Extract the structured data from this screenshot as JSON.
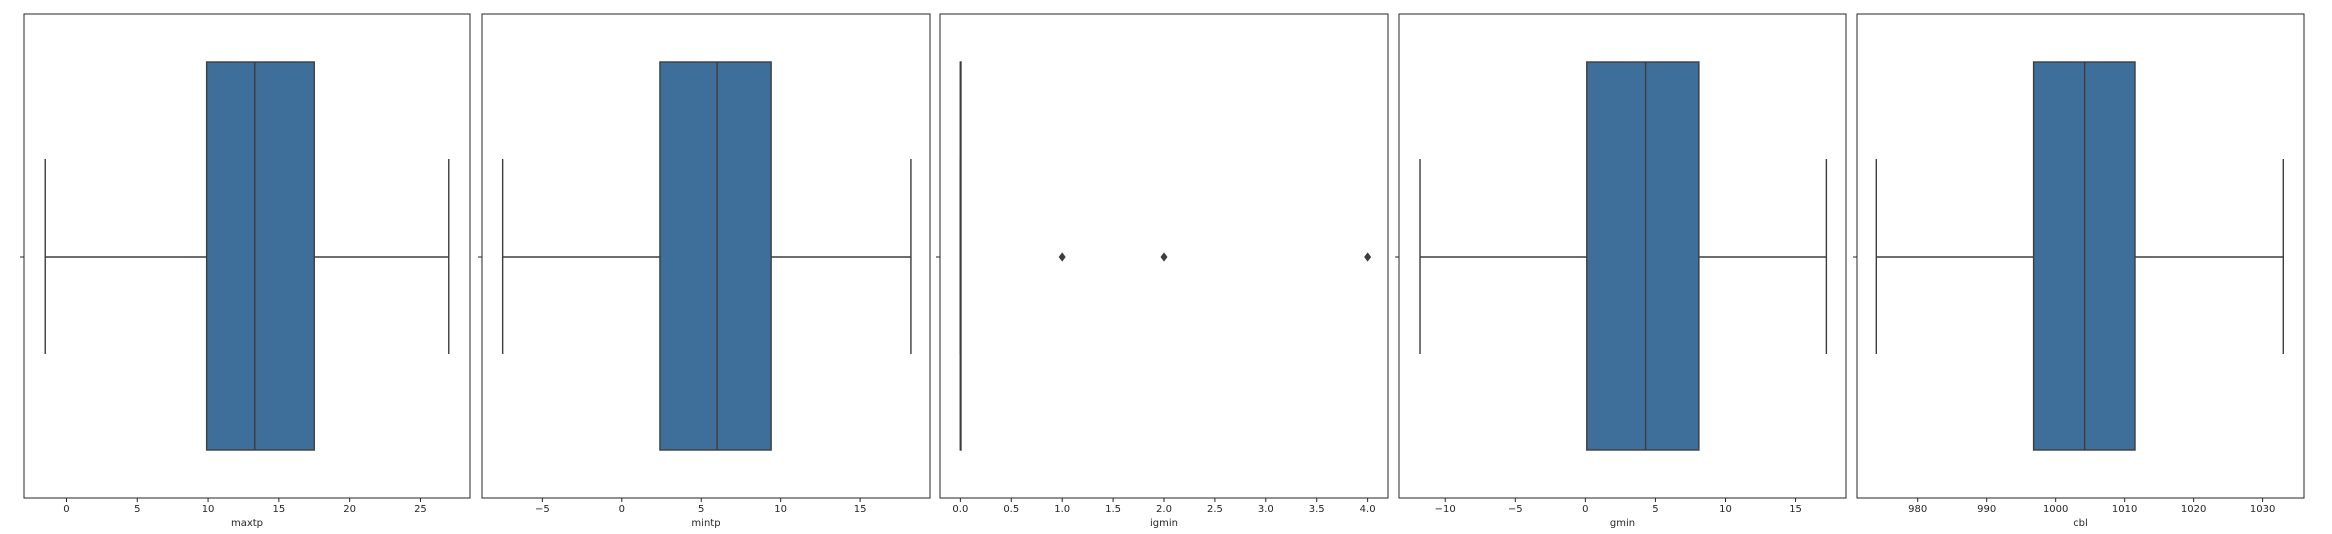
{
  "chart_data": [
    {
      "type": "box",
      "xlabel": "maxtp",
      "xlim": [
        -3.0,
        28.5
      ],
      "ticks": [
        0,
        5,
        10,
        15,
        20,
        25
      ],
      "tick_labels": [
        "0",
        "5",
        "10",
        "15",
        "20",
        "25"
      ],
      "box": {
        "whisker_low": -1.5,
        "q1": 9.9,
        "median": 13.3,
        "q3": 17.5,
        "whisker_high": 27.0
      },
      "outliers": [],
      "box_color": "#3e6f9b"
    },
    {
      "type": "box",
      "xlabel": "mintp",
      "xlim": [
        -8.8,
        19.4
      ],
      "ticks": [
        -5,
        0,
        5,
        10,
        15
      ],
      "tick_labels": [
        "−5",
        "0",
        "5",
        "10",
        "15"
      ],
      "box": {
        "whisker_low": -7.5,
        "q1": 2.4,
        "median": 6.0,
        "q3": 9.4,
        "whisker_high": 18.2
      },
      "outliers": [],
      "box_color": "#3e6f9b"
    },
    {
      "type": "box",
      "xlabel": "igmin",
      "xlim": [
        -0.2,
        4.2
      ],
      "ticks": [
        0.0,
        0.5,
        1.0,
        1.5,
        2.0,
        2.5,
        3.0,
        3.5,
        4.0
      ],
      "tick_labels": [
        "0.0",
        "0.5",
        "1.0",
        "1.5",
        "2.0",
        "2.5",
        "3.0",
        "3.5",
        "4.0"
      ],
      "box": {
        "whisker_low": 0.0,
        "q1": 0.0,
        "median": 0.0,
        "q3": 0.0,
        "whisker_high": 0.0
      },
      "outliers": [
        1.0,
        2.0,
        4.0
      ],
      "box_color": "#3e6f9b"
    },
    {
      "type": "box",
      "xlabel": "gmin",
      "xlim": [
        -13.3,
        18.6
      ],
      "ticks": [
        -10,
        -5,
        0,
        5,
        10,
        15
      ],
      "tick_labels": [
        "−10",
        "−5",
        "0",
        "5",
        "10",
        "15"
      ],
      "box": {
        "whisker_low": -11.8,
        "q1": 0.1,
        "median": 4.3,
        "q3": 8.1,
        "whisker_high": 17.2
      },
      "outliers": [],
      "box_color": "#3e6f9b"
    },
    {
      "type": "box",
      "xlabel": "cbl",
      "xlim": [
        971.2,
        1036.0
      ],
      "ticks": [
        980,
        990,
        1000,
        1010,
        1020,
        1030
      ],
      "tick_labels": [
        "980",
        "990",
        "1000",
        "1010",
        "1020",
        "1030"
      ],
      "box": {
        "whisker_low": 974.0,
        "q1": 996.8,
        "median": 1004.2,
        "q3": 1011.5,
        "whisker_high": 1033.0
      },
      "outliers": [],
      "box_color": "#3e6f9b"
    }
  ]
}
